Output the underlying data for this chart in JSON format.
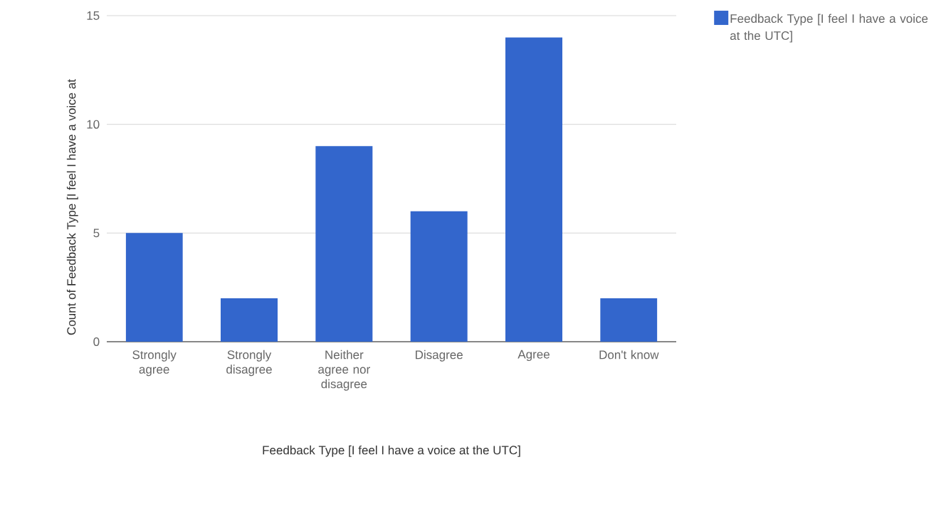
{
  "chart_data": {
    "type": "bar",
    "categories": [
      "Strongly agree",
      "Strongly disagree",
      "Neither agree nor disagree",
      "Disagree",
      "Agree",
      "Don't know"
    ],
    "series": [
      {
        "name": "Feedback Type [I feel I have a voice at the UTC]",
        "color": "#3366cc",
        "values": [
          5,
          2,
          9,
          6,
          14,
          2
        ]
      }
    ],
    "xlabel": "Feedback Type [I feel I have a voice at the UTC]",
    "ylabel": "Count of Feedback Type [I feel I have a voice at",
    "ylim": [
      0,
      15
    ],
    "yticks": [
      0,
      5,
      10,
      15
    ],
    "grid": "y",
    "legend": "right"
  }
}
